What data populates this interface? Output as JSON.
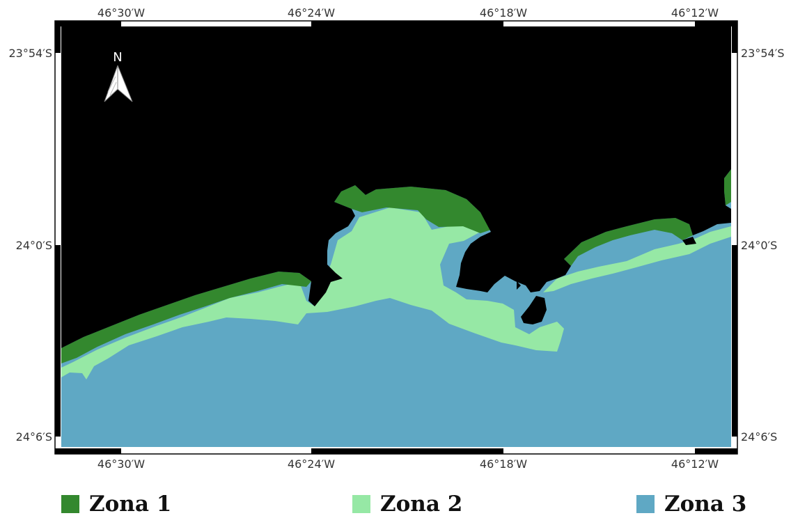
{
  "map": {
    "north_label": "N",
    "lon_top_labels": [
      "46°30′W",
      "46°24′W",
      "46°18′W",
      "46°12′W"
    ],
    "lon_bottom_labels": [
      "46°30′W",
      "46°24′W",
      "46°18′W",
      "46°12′W"
    ],
    "lat_left_labels": [
      "23°54′S",
      "24°0′S",
      "24°6′S"
    ],
    "lat_right_labels": [
      "23°54′S",
      "24°0′S",
      "24°6′S"
    ],
    "colors": {
      "land": "#000000",
      "zona1": "#33882e",
      "zona2": "#96e8a5",
      "zona3": "#5fa8c4"
    }
  },
  "legend": {
    "items": [
      {
        "label": "Zona 1",
        "color": "#33882e"
      },
      {
        "label": "Zona 2",
        "color": "#96e8a5"
      },
      {
        "label": "Zona 3",
        "color": "#5fa8c4"
      }
    ]
  }
}
